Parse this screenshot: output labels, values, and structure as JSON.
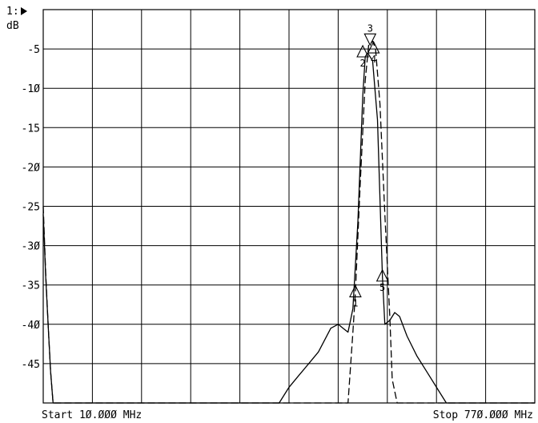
{
  "chart_data": {
    "type": "line",
    "header_label": "1:",
    "unit_label": "dB",
    "ylim": [
      -50,
      0
    ],
    "xlim": [
      0,
      10
    ],
    "y_ticks": [
      -5,
      -10,
      -15,
      -20,
      -25,
      -30,
      -35,
      -40,
      -45
    ],
    "y_tick_labels": [
      "-5",
      "-1Ø",
      "-15",
      "-2Ø",
      "-25",
      "-3Ø",
      "-35",
      "-4Ø",
      "-45"
    ],
    "x_divisions": 10,
    "start_label": "Start 1Ø.ØØØ MHz",
    "stop_label": "Stop 77Ø.ØØØ MHz",
    "grid": true,
    "series": [
      {
        "style": "solid",
        "points": [
          [
            0.0,
            -26.0
          ],
          [
            0.05,
            -34.0
          ],
          [
            0.1,
            -40.0
          ],
          [
            0.15,
            -46.0
          ],
          [
            0.2,
            -50.0
          ],
          [
            4.8,
            -50.0
          ],
          [
            5.0,
            -48.0
          ],
          [
            5.2,
            -46.5
          ],
          [
            5.4,
            -45.0
          ],
          [
            5.6,
            -43.5
          ],
          [
            5.85,
            -40.5
          ],
          [
            6.0,
            -40.0
          ],
          [
            6.1,
            -40.5
          ],
          [
            6.2,
            -41.0
          ],
          [
            6.25,
            -39.5
          ],
          [
            6.3,
            -38.0
          ],
          [
            6.4,
            -27.0
          ],
          [
            6.5,
            -11.0
          ],
          [
            6.55,
            -6.0
          ],
          [
            6.6,
            -5.5
          ],
          [
            6.7,
            -6.5
          ],
          [
            6.8,
            -14.0
          ],
          [
            6.9,
            -34.0
          ],
          [
            6.95,
            -40.0
          ],
          [
            7.05,
            -39.5
          ],
          [
            7.15,
            -38.5
          ],
          [
            7.25,
            -39.0
          ],
          [
            7.4,
            -41.5
          ],
          [
            7.6,
            -44.0
          ],
          [
            7.8,
            -46.0
          ],
          [
            8.0,
            -48.0
          ],
          [
            8.2,
            -50.0
          ],
          [
            10.0,
            -50.0
          ]
        ]
      },
      {
        "style": "dashed",
        "points": [
          [
            0.0,
            -25.0
          ],
          [
            0.05,
            -33.5
          ],
          [
            0.1,
            -40.0
          ],
          [
            0.15,
            -46.0
          ],
          [
            0.2,
            -50.0
          ],
          [
            6.2,
            -50.0
          ],
          [
            6.3,
            -41.0
          ],
          [
            6.35,
            -36.0
          ],
          [
            6.45,
            -22.0
          ],
          [
            6.55,
            -9.0
          ],
          [
            6.62,
            -4.5
          ],
          [
            6.7,
            -4.0
          ],
          [
            6.76,
            -5.0
          ],
          [
            6.85,
            -12.0
          ],
          [
            6.95,
            -26.0
          ],
          [
            7.05,
            -39.0
          ],
          [
            7.1,
            -47.0
          ],
          [
            7.2,
            -50.0
          ],
          [
            10.0,
            -50.0
          ]
        ]
      }
    ],
    "markers": [
      {
        "label": "1",
        "x": 6.35,
        "y": -36.0,
        "dir": "up",
        "label_pos": "below"
      },
      {
        "label": "2",
        "x": 6.5,
        "y": -5.5,
        "dir": "up",
        "label_pos": "below"
      },
      {
        "label": "3",
        "x": 6.65,
        "y": -4.0,
        "dir": "down",
        "label_pos": "above"
      },
      {
        "label": "4",
        "x": 6.72,
        "y": -5.0,
        "dir": "up",
        "label_pos": "below"
      },
      {
        "label": "5",
        "x": 6.9,
        "y": -34.0,
        "dir": "up",
        "label_pos": "below"
      }
    ]
  }
}
